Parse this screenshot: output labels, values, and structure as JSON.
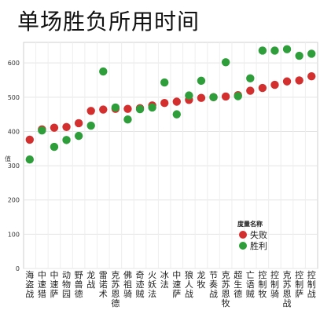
{
  "chart_data": {
    "type": "scatter",
    "title": "单场胜负所用时间",
    "ylabel": "值",
    "ylim": [
      0,
      660
    ],
    "yticks": [
      0,
      100,
      200,
      300,
      400,
      500,
      600
    ],
    "grid": true,
    "legend": {
      "title": "度量名称",
      "position": "bottom-right",
      "entries": [
        {
          "name": "失败",
          "color": "#d32f2f"
        },
        {
          "name": "胜利",
          "color": "#2e9e3a"
        }
      ]
    },
    "categories": [
      "海盗战",
      "中速猎",
      "中速萨",
      "动物园",
      "野兽德",
      "龙战",
      "雷诺术",
      "克苏恩德",
      "佛祖骑",
      "奇迹贼",
      "火妖法",
      "冰法",
      "中速萨",
      "狼人战",
      "龙牧",
      "节奏战",
      "克苏恩牧",
      "超生德",
      "亡语贼",
      "控制牧",
      "控制骑",
      "克苏恩战",
      "控制萨",
      "控制战"
    ],
    "series": [
      {
        "name": "失败",
        "color": "#d32f2f",
        "values": [
          376,
          406,
          411,
          413,
          424,
          460,
          464,
          466,
          466,
          468,
          476,
          483,
          487,
          492,
          498,
          500,
          502,
          506,
          519,
          527,
          536,
          546,
          549,
          561
        ]
      },
      {
        "name": "胜利",
        "color": "#2e9e3a",
        "values": [
          318,
          403,
          355,
          375,
          387,
          417,
          575,
          470,
          435,
          465,
          470,
          543,
          450,
          505,
          548,
          500,
          602,
          503,
          555,
          636,
          636,
          640,
          621,
          627
        ]
      }
    ]
  }
}
